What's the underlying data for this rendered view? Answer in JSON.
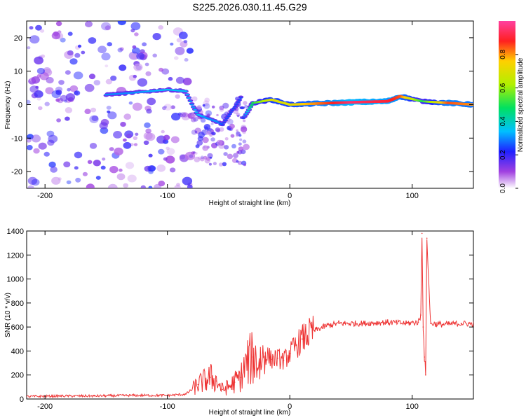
{
  "chart_data": [
    {
      "type": "heatmap",
      "title": "S225.2026.030.11.45.G29",
      "xlabel": "Height of straight line (km)",
      "ylabel": "Frequency (Hz)",
      "xlim": [
        -215,
        150
      ],
      "ylim": [
        -25,
        25
      ],
      "xticks": [
        -200,
        -100,
        0,
        100
      ],
      "yticks": [
        -20,
        -10,
        0,
        10,
        20
      ],
      "colorbar": {
        "label": "Normalized spectral amplitude",
        "range": [
          0,
          1
        ],
        "ticks": [
          "0.0",
          "0.2",
          "0.4",
          "0.6",
          "0.8"
        ]
      },
      "ridge": [
        {
          "x": -150,
          "y": 3,
          "amp": 0.3
        },
        {
          "x": -130,
          "y": 3.5,
          "amp": 0.3
        },
        {
          "x": -100,
          "y": 4.5,
          "amp": 0.35
        },
        {
          "x": -85,
          "y": 4,
          "amp": 0.35
        },
        {
          "x": -80,
          "y": 0,
          "amp": 0.3
        },
        {
          "x": -75,
          "y": -3,
          "amp": 0.35
        },
        {
          "x": -68,
          "y": -4,
          "amp": 0.3
        },
        {
          "x": -60,
          "y": -5,
          "amp": 0.3
        },
        {
          "x": -55,
          "y": -6,
          "amp": 0.25
        },
        {
          "x": -40,
          "y": 2,
          "amp": 0.25
        },
        {
          "x": -38,
          "y": -4,
          "amp": 0.25
        },
        {
          "x": -30,
          "y": 0.5,
          "amp": 0.5
        },
        {
          "x": -15,
          "y": 1.5,
          "amp": 0.7
        },
        {
          "x": 0,
          "y": 0,
          "amp": 0.7
        },
        {
          "x": 20,
          "y": 0.3,
          "amp": 0.8
        },
        {
          "x": 50,
          "y": 0.7,
          "amp": 0.95
        },
        {
          "x": 80,
          "y": 1,
          "amp": 0.9
        },
        {
          "x": 90,
          "y": 2.5,
          "amp": 0.85
        },
        {
          "x": 108,
          "y": 1,
          "amp": 0.5
        },
        {
          "x": 130,
          "y": 0.5,
          "amp": 0.85
        },
        {
          "x": 150,
          "y": 0,
          "amp": 0.8
        }
      ]
    },
    {
      "type": "line",
      "title": "",
      "xlabel": "Height of straight line (km)",
      "ylabel": "SNR (10 * v/v)",
      "xlim": [
        -215,
        150
      ],
      "ylim": [
        0,
        1400
      ],
      "xticks": [
        -200,
        -100,
        0,
        100
      ],
      "yticks": [
        0,
        200,
        400,
        600,
        800,
        1000,
        1200,
        1400
      ],
      "series": [
        {
          "name": "SNR",
          "color": "#ee3333",
          "x": [
            -215,
            -190,
            -160,
            -130,
            -100,
            -85,
            -75,
            -65,
            -60,
            -55,
            -50,
            -45,
            -40,
            -35,
            -30,
            -25,
            -20,
            -15,
            -10,
            -5,
            0,
            10,
            20,
            30,
            40,
            60,
            80,
            95,
            105,
            107,
            108,
            109,
            110,
            111,
            112,
            115,
            125,
            140,
            150
          ],
          "values": [
            20,
            25,
            25,
            30,
            30,
            40,
            120,
            180,
            150,
            80,
            100,
            140,
            180,
            300,
            350,
            300,
            380,
            330,
            340,
            320,
            380,
            500,
            570,
            610,
            630,
            630,
            640,
            630,
            640,
            700,
            1380,
            600,
            350,
            200,
            1340,
            630,
            620,
            630,
            625
          ]
        }
      ]
    }
  ]
}
